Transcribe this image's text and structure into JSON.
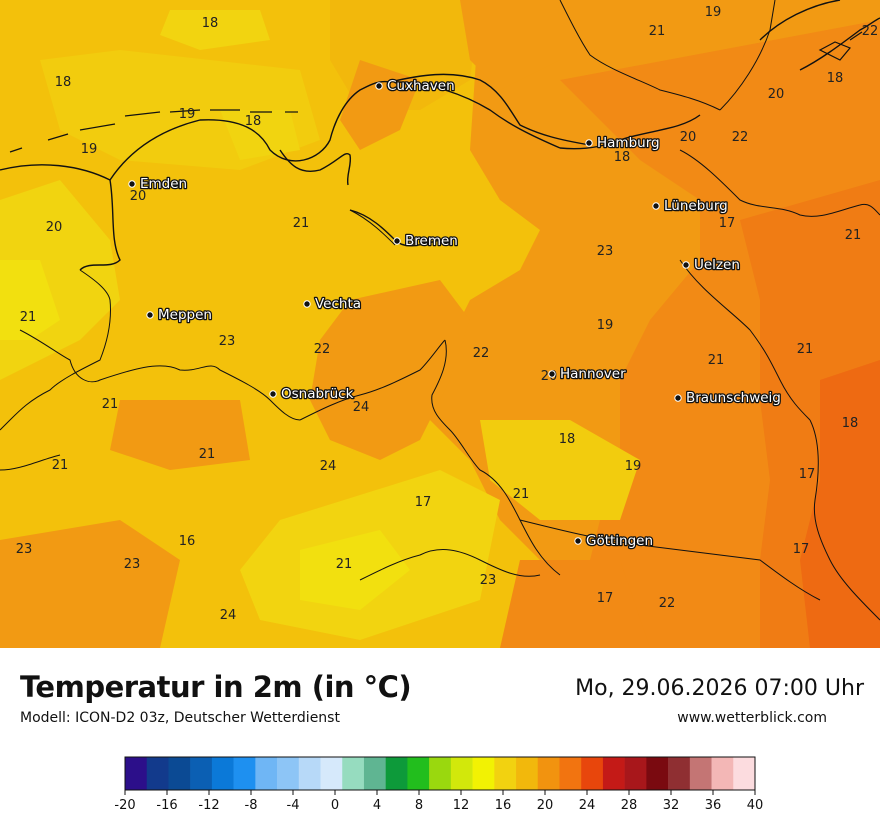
{
  "title": "Temperatur in 2m (in °C)",
  "model": "Modell: ICON-D2 03z, Deutscher Wetterdienst",
  "datetime": "Mo, 29.06.2026 07:00 Uhr",
  "website": "www.wetterblick.com",
  "colors": {
    "t16": "#f2e00f",
    "t17": "#f1d410",
    "t18": "#f2cc0e",
    "t19": "#f3c10b",
    "t20": "#f2b80c",
    "t21": "#f29a13",
    "t22": "#f28a15",
    "t23": "#f07c14",
    "t24": "#ee6a12",
    "outline": "#111111"
  },
  "cities": [
    {
      "name": "Cuxhaven"
    },
    {
      "name": "Hamburg"
    },
    {
      "name": "Emden"
    },
    {
      "name": "Lüneburg"
    },
    {
      "name": "Bremen"
    },
    {
      "name": "Uelzen"
    },
    {
      "name": "Vechta"
    },
    {
      "name": "Meppen"
    },
    {
      "name": "Hannover"
    },
    {
      "name": "Osnabrück"
    },
    {
      "name": "Braunschweig"
    },
    {
      "name": "Göttingen"
    }
  ],
  "temperature_labels": [
    "18",
    "19",
    "21",
    "22",
    "18",
    "20",
    "19",
    "18",
    "19",
    "20",
    "22",
    "18",
    "18",
    "20",
    "21",
    "20",
    "23",
    "17",
    "21",
    "21",
    "19",
    "22",
    "23",
    "22",
    "21",
    "21",
    "20",
    "21",
    "24",
    "18",
    "18",
    "21",
    "21",
    "24",
    "17",
    "17",
    "19",
    "21",
    "23",
    "16",
    "17",
    "21",
    "23",
    "23",
    "17",
    "22",
    "24"
  ],
  "legend": {
    "ticks": [
      "-20",
      "-16",
      "-12",
      "-8",
      "-4",
      "0",
      "4",
      "8",
      "12",
      "16",
      "20",
      "24",
      "28",
      "32",
      "36",
      "40"
    ],
    "swatches": [
      "#2c0f8a",
      "#123a8c",
      "#0b4a94",
      "#0b5fb3",
      "#0b79d8",
      "#1e90f0",
      "#6fb6f5",
      "#8dc5f6",
      "#b7d9f8",
      "#d6e9fb",
      "#96dcbf",
      "#5fb592",
      "#0d9a3a",
      "#22be1d",
      "#9ad80e",
      "#d2e80b",
      "#f2f203",
      "#f2d210",
      "#f2b80c",
      "#f2930f",
      "#f27410",
      "#e8460c",
      "#c41a17",
      "#a8171b",
      "#7a0a10",
      "#8f2f32",
      "#c47574",
      "#f3b7b6",
      "#fcdcdf"
    ]
  }
}
